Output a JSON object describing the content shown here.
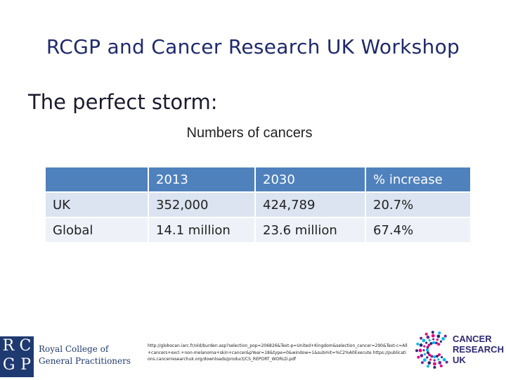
{
  "slide": {
    "title": "RCGP and Cancer Research UK Workshop",
    "subtitle": "The perfect storm:"
  },
  "table": {
    "caption": "Numbers of cancers",
    "headers": [
      "",
      "2013",
      "2030",
      "% increase"
    ],
    "rows": [
      {
        "label": "UK",
        "y2013": "352,000",
        "y2030": "424,789",
        "increase": "20.7%"
      },
      {
        "label": "Global",
        "y2013": "14.1 million",
        "y2030": "23.6 million",
        "increase": "67.4%"
      }
    ]
  },
  "footer": {
    "rcgp_letters": [
      "R",
      "C",
      "G",
      "P"
    ],
    "rcgp_name_line1": "Royal College of",
    "rcgp_name_line2": "General Practitioners",
    "references": "http://globocan.iarc.fr/old/burden.asp?selection_pop=206826&Text-p=United+Kingdom&selection_cancer=290&Text-c=All+cancers+excl.+non-melanoma+skin+cancer&pYear=18&type=0&window=1&submit=%C2%A0Execute https://publications.cancerresearchuk.org/downloads/product/CS_REPORT_WORLD.pdf",
    "cruk_line1": "CANCER",
    "cruk_line2": "RESEARCH",
    "cruk_line3": "UK"
  },
  "colors": {
    "title": "#1f2a6b",
    "header_bg": "#4f81bd",
    "row1_bg": "#dbe4f0",
    "row2_bg": "#eef2f8",
    "rcgp_blue": "#1f3a70",
    "cruk_navy": "#2e2a74",
    "cruk_pink": "#e6007e"
  }
}
